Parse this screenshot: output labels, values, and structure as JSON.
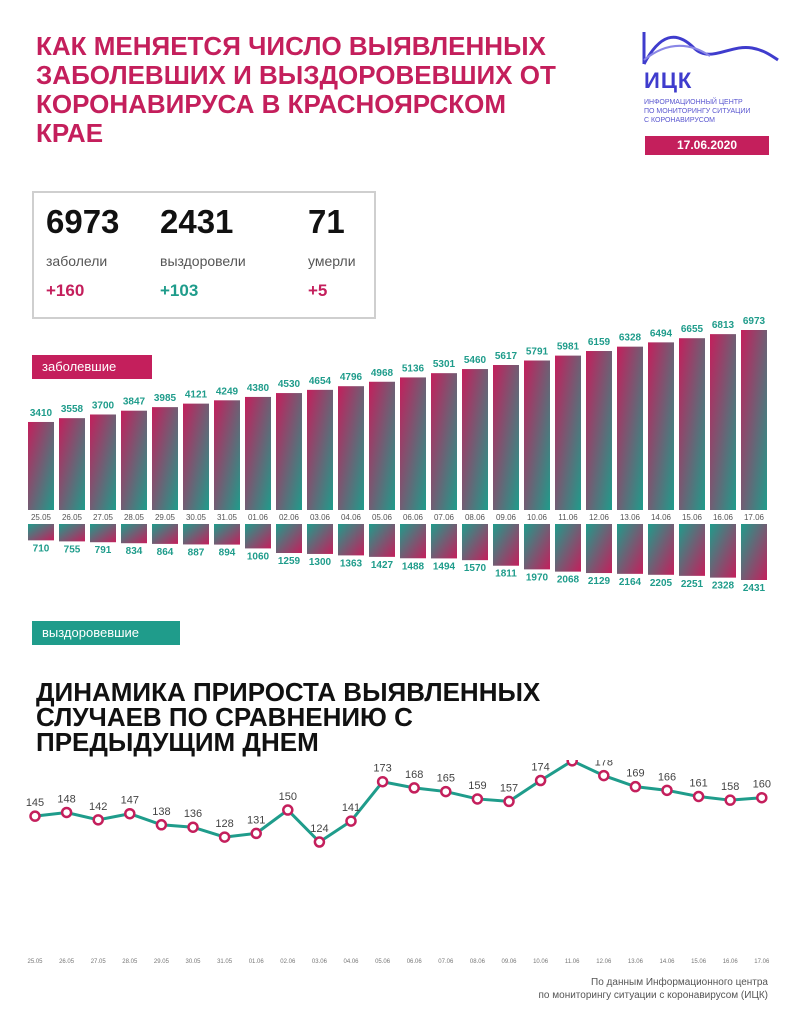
{
  "header": {
    "title_lines": [
      "КАК МЕНЯЕТСЯ ЧИСЛО ВЫЯВЛЕННЫХ",
      "ЗАБОЛЕВШИХ И ВЫЗДОРОВЕВШИХ ОТ",
      "КОРОНАВИРУСА В КРАСНОЯРСКОМ",
      "КРАЕ"
    ],
    "logo_name": "ИЦК",
    "logo_sub": [
      "ИНФОРМАЦИОННЫЙ ЦЕНТР",
      "ПО МОНИТОРИНГУ СИТУАЦИИ",
      "С КОРОНАВИРУСОМ"
    ],
    "date": "17.06.2020"
  },
  "stats": [
    {
      "value": "6973",
      "label": "заболели",
      "delta": "+160",
      "color": "#c41f5c"
    },
    {
      "value": "2431",
      "label": "выздоровели",
      "delta": "+103",
      "color": "#1f9c8b"
    },
    {
      "value": "71",
      "label": "умерли",
      "delta": "+5",
      "color": "#c41f5c"
    }
  ],
  "labels": {
    "sick_tag": "заболевшие",
    "recovered_tag": "выздоровевшие",
    "line_title": [
      "ДИНАМИКА ПРИРОСТА ВЫЯВЛЕННЫХ",
      "СЛУЧАЕВ ПО СРАВНЕНИЮ С",
      "ПРЕДЫДУЩИМ ДНЕМ"
    ],
    "source": [
      "По данным Информационного центра",
      "по мониторингу ситуации с коронавирусом (ИЦК)"
    ]
  },
  "colors": {
    "crimson": "#c41f5c",
    "teal": "#1f9c8b",
    "line": "#1f9c8b",
    "marker_border": "#c41f5c"
  },
  "chart_data": [
    {
      "type": "bar",
      "categories": [
        "25.05",
        "26.05",
        "27.05",
        "28.05",
        "29.05",
        "30.05",
        "31.05",
        "01.06",
        "02.06",
        "03.06",
        "04.06",
        "05.06",
        "06.06",
        "07.06",
        "08.06",
        "09.06",
        "10.06",
        "11.06",
        "12.06",
        "13.06",
        "14.06",
        "15.06",
        "16.06",
        "17.06"
      ],
      "series": [
        {
          "name": "заболевшие",
          "values": [
            3410,
            3558,
            3700,
            3847,
            3985,
            4121,
            4249,
            4380,
            4530,
            4654,
            4796,
            4968,
            5136,
            5301,
            5460,
            5617,
            5791,
            5981,
            6159,
            6328,
            6494,
            6655,
            6813,
            6973
          ]
        },
        {
          "name": "выздоровевшие",
          "values": [
            710,
            755,
            791,
            834,
            864,
            887,
            894,
            1060,
            1259,
            1300,
            1363,
            1427,
            1488,
            1494,
            1570,
            1811,
            1970,
            2068,
            2129,
            2164,
            2205,
            2251,
            2328,
            2431
          ]
        }
      ]
    },
    {
      "type": "line",
      "title": "ДИНАМИКА ПРИРОСТА ВЫЯВЛЕННЫХ СЛУЧАЕВ ПО СРАВНЕНИЮ С ПРЕДЫДУЩИМ ДНЕМ",
      "categories": [
        "25.05",
        "26.05",
        "27.05",
        "28.05",
        "29.05",
        "30.05",
        "31.05",
        "01.06",
        "02.06",
        "03.06",
        "04.06",
        "05.06",
        "06.06",
        "07.06",
        "08.06",
        "09.06",
        "10.06",
        "11.06",
        "12.06",
        "13.06",
        "14.06",
        "15.06",
        "16.06",
        "17.06"
      ],
      "values": [
        145,
        148,
        142,
        147,
        138,
        136,
        128,
        131,
        150,
        124,
        141,
        173,
        168,
        165,
        159,
        157,
        174,
        190,
        178,
        169,
        166,
        161,
        158,
        160
      ]
    }
  ]
}
